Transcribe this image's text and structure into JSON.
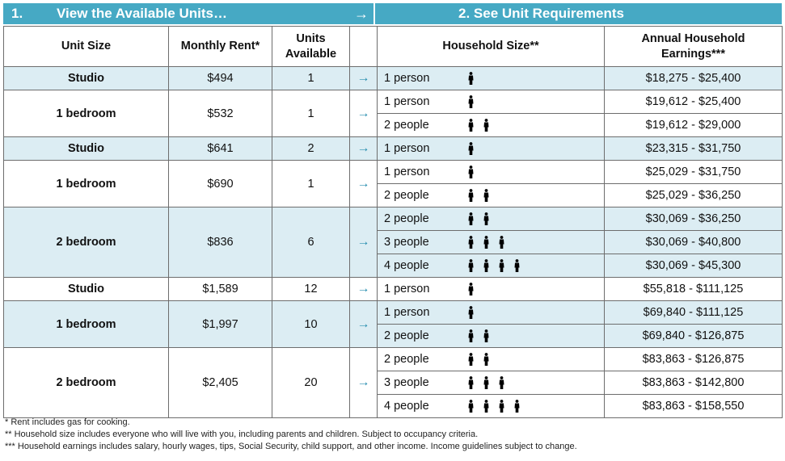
{
  "banner": {
    "step1_num": "1.",
    "step1_title": "View the Available Units…",
    "arrow": "→",
    "step2_title": "2. See Unit Requirements"
  },
  "headers": {
    "unit_size": "Unit Size",
    "monthly_rent": "Monthly Rent*",
    "units_available": [
      "Units",
      "Available"
    ],
    "household_size": "Household Size**",
    "earnings": [
      "Annual Household",
      "Earnings***"
    ]
  },
  "units": [
    {
      "size": "Studio",
      "rent": "$494",
      "available": "1",
      "shaded": true,
      "requirements": [
        {
          "household": "1 person",
          "persons": 1,
          "earnings": "$18,275 - $25,400"
        }
      ]
    },
    {
      "size": "1 bedroom",
      "rent": "$532",
      "available": "1",
      "shaded": false,
      "requirements": [
        {
          "household": "1 person",
          "persons": 1,
          "earnings": "$19,612 - $25,400"
        },
        {
          "household": "2 people",
          "persons": 2,
          "earnings": "$19,612 - $29,000"
        }
      ]
    },
    {
      "size": "Studio",
      "rent": "$641",
      "available": "2",
      "shaded": true,
      "requirements": [
        {
          "household": "1 person",
          "persons": 1,
          "earnings": "$23,315 - $31,750"
        }
      ]
    },
    {
      "size": "1 bedroom",
      "rent": "$690",
      "available": "1",
      "shaded": false,
      "requirements": [
        {
          "household": "1 person",
          "persons": 1,
          "earnings": "$25,029 - $31,750"
        },
        {
          "household": "2 people",
          "persons": 2,
          "earnings": "$25,029 - $36,250"
        }
      ]
    },
    {
      "size": "2 bedroom",
      "rent": "$836",
      "available": "6",
      "shaded": true,
      "requirements": [
        {
          "household": "2 people",
          "persons": 2,
          "earnings": "$30,069 - $36,250"
        },
        {
          "household": "3 people",
          "persons": 3,
          "earnings": "$30,069 - $40,800"
        },
        {
          "household": "4 people",
          "persons": 4,
          "earnings": "$30,069 - $45,300"
        }
      ]
    },
    {
      "size": "Studio",
      "rent": "$1,589",
      "available": "12",
      "shaded": false,
      "requirements": [
        {
          "household": "1 person",
          "persons": 1,
          "earnings": "$55,818 - $111,125"
        }
      ]
    },
    {
      "size": "1 bedroom",
      "rent": "$1,997",
      "available": "10",
      "shaded": true,
      "requirements": [
        {
          "household": "1 person",
          "persons": 1,
          "earnings": "$69,840 - $111,125"
        },
        {
          "household": "2 people",
          "persons": 2,
          "earnings": "$69,840 - $126,875"
        }
      ]
    },
    {
      "size": "2 bedroom",
      "rent": "$2,405",
      "available": "20",
      "shaded": false,
      "requirements": [
        {
          "household": "2 people",
          "persons": 2,
          "earnings": "$83,863 - $126,875"
        },
        {
          "household": "3 people",
          "persons": 3,
          "earnings": "$83,863 - $142,800"
        },
        {
          "household": "4 people",
          "persons": 4,
          "earnings": "$83,863 - $158,550"
        }
      ]
    }
  ],
  "footnotes": [
    "* Rent includes gas for cooking.",
    "** Household size includes everyone who will live with you, including parents and children. Subject to occupancy criteria.",
    "*** Household earnings includes salary, hourly wages, tips, Social Security, child support, and other income. Income guidelines subject to change."
  ],
  "icons": {
    "person": "person-icon",
    "row_arrow": "arrow-right-icon"
  },
  "colors": {
    "banner": "#46a9c4",
    "shade": "#dcedf3",
    "arrow": "#2a8fb0"
  }
}
